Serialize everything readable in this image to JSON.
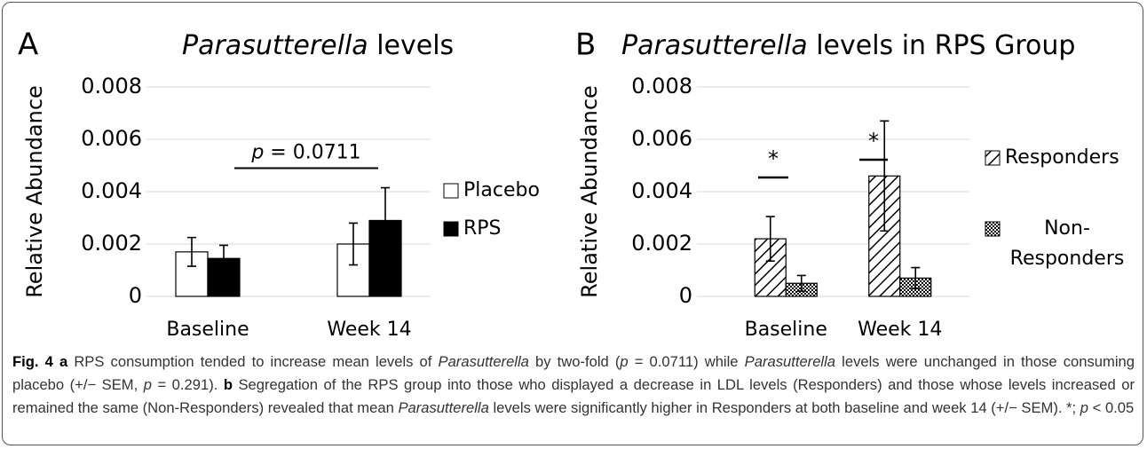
{
  "chart_data": [
    {
      "type": "bar",
      "panel": "A",
      "title": [
        {
          "text": "Parasutterella",
          "italic": true
        },
        {
          "text": " levels"
        }
      ],
      "ylabel": "Relative Abundance",
      "categories": [
        "Baseline",
        "Week 14"
      ],
      "series": [
        {
          "name": "Placebo",
          "color": "#ffffff",
          "values": [
            0.0017,
            0.002
          ],
          "errors": [
            0.00055,
            0.0008
          ]
        },
        {
          "name": "RPS",
          "color": "#000000",
          "values": [
            0.00145,
            0.0029
          ],
          "errors": [
            0.0005,
            0.00125
          ]
        }
      ],
      "ylim": [
        0,
        0.008
      ],
      "yticks": [
        0,
        0.002,
        0.004,
        0.006,
        0.008
      ],
      "grid": true,
      "legend": "right",
      "annotation": {
        "segments": [
          {
            "text": "p",
            "italic": true
          },
          {
            "text": " = 0.0711"
          }
        ],
        "value": 0.0049
      }
    },
    {
      "type": "bar",
      "panel": "B",
      "title": [
        {
          "text": "Parasutterella",
          "italic": true
        },
        {
          "text": " levels in RPS Group"
        }
      ],
      "ylabel": "Relative Abundance",
      "categories": [
        "Baseline",
        "Week 14"
      ],
      "series": [
        {
          "name": "Responders",
          "color": "#000000",
          "hatch": "diagonal",
          "values": [
            0.0022,
            0.0046
          ],
          "errors": [
            0.00085,
            0.0021
          ]
        },
        {
          "name": "Non-Responders",
          "color": "#000000",
          "hatch": "cross",
          "values": [
            0.0005,
            0.0007
          ],
          "errors": [
            0.0003,
            0.0004
          ]
        }
      ],
      "ylim": [
        0,
        0.008
      ],
      "yticks": [
        0,
        0.002,
        0.004,
        0.006,
        0.008
      ],
      "grid": true,
      "legend": "right",
      "significance": [
        "*",
        "*"
      ]
    }
  ],
  "caption": [
    {
      "text": "Fig. 4",
      "bold": true
    },
    {
      "text": " "
    },
    {
      "text": "a",
      "bold": true
    },
    {
      "text": " RPS consumption tended to increase mean levels of "
    },
    {
      "text": "Parasutterella",
      "italic": true
    },
    {
      "text": " by two-fold ("
    },
    {
      "text": "p",
      "italic": true
    },
    {
      "text": " = 0.0711) while "
    },
    {
      "text": "Parasutterella",
      "italic": true
    },
    {
      "text": " levels were unchanged in those consuming placebo (+/− SEM, "
    },
    {
      "text": "p",
      "italic": true
    },
    {
      "text": " = 0.291). "
    },
    {
      "text": "b",
      "bold": true
    },
    {
      "text": " Segregation of the RPS group into those who displayed a decrease in LDL levels (Responders) and those whose levels increased or remained the same (Non-Responders) revealed that mean "
    },
    {
      "text": "Parasutterella",
      "italic": true
    },
    {
      "text": " levels were significantly higher in Responders at both baseline and week 14 (+/− SEM). *; "
    },
    {
      "text": "p",
      "italic": true
    },
    {
      "text": " < 0.05"
    }
  ]
}
